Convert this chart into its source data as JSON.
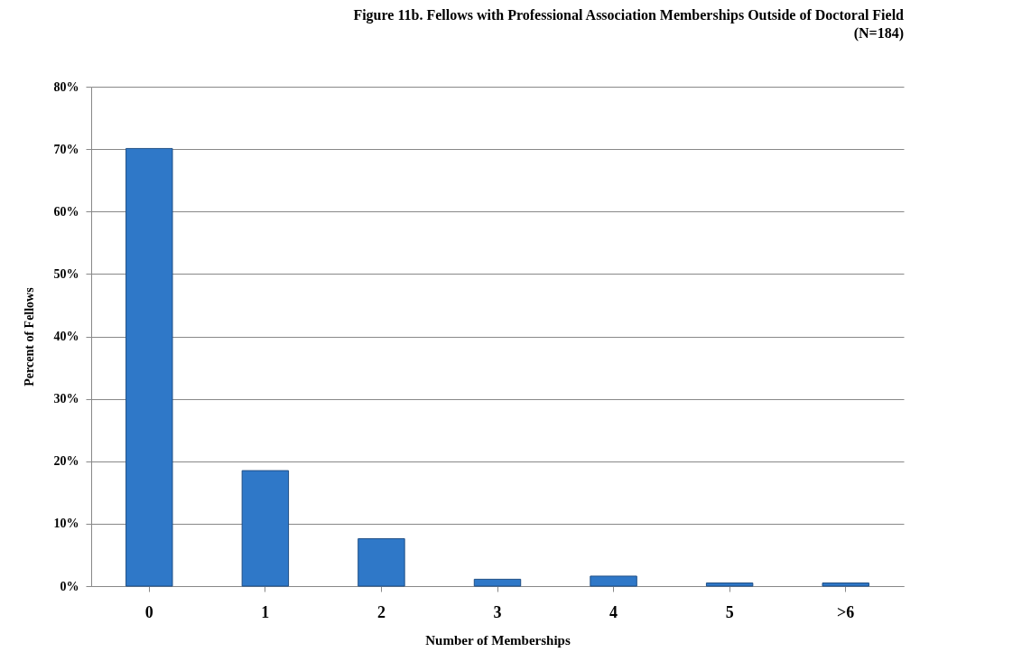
{
  "chart_data": {
    "type": "bar",
    "title": "Figure 11b. Fellows with Professional Association Memberships Outside of Doctoral Field",
    "subtitle": "(N=184)",
    "xlabel": "Number of  Memberships",
    "ylabel": "Percent of Fellows",
    "categories": [
      "0",
      "1",
      "2",
      "3",
      "4",
      "5",
      ">6"
    ],
    "values": [
      70.1,
      18.5,
      7.6,
      1.1,
      1.6,
      0.5,
      0.5
    ],
    "color": "#2f78c8",
    "ylim": [
      0,
      80
    ],
    "yticks": [
      {
        "value": 0,
        "label": "0%"
      },
      {
        "value": 10,
        "label": "10%"
      },
      {
        "value": 20,
        "label": "20%"
      },
      {
        "value": 30,
        "label": "30%"
      },
      {
        "value": 40,
        "label": "40%"
      },
      {
        "value": 50,
        "label": "50%"
      },
      {
        "value": 60,
        "label": "60%"
      },
      {
        "value": 70,
        "label": "70%"
      },
      {
        "value": 80,
        "label": "80%"
      }
    ],
    "grid": "y"
  }
}
